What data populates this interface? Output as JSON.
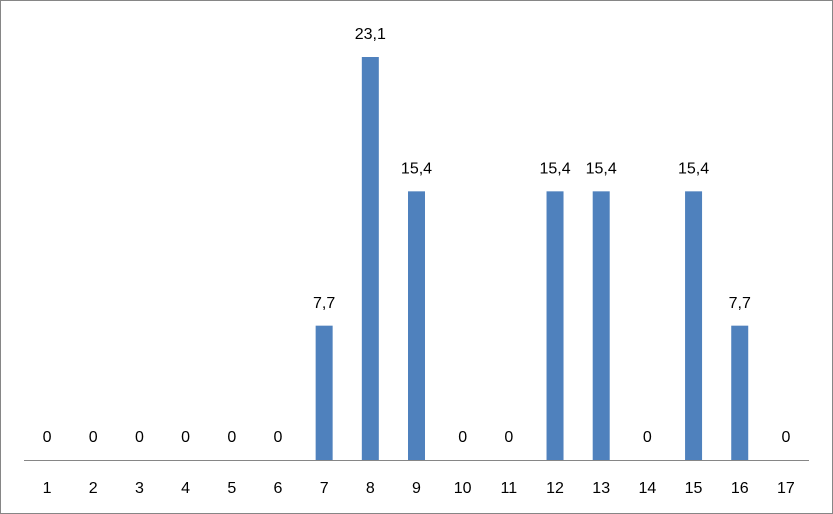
{
  "chart_data": {
    "type": "bar",
    "categories": [
      "1",
      "2",
      "3",
      "4",
      "5",
      "6",
      "7",
      "8",
      "9",
      "10",
      "11",
      "12",
      "13",
      "14",
      "15",
      "16",
      "17"
    ],
    "values": [
      0,
      0,
      0,
      0,
      0,
      0,
      7.7,
      23.1,
      15.4,
      0,
      0,
      15.4,
      15.4,
      0,
      15.4,
      7.7,
      0
    ],
    "value_labels": [
      "0",
      "0",
      "0",
      "0",
      "0",
      "0",
      "7,7",
      "23,1",
      "15,4",
      "0",
      "0",
      "15,4",
      "15,4",
      "0",
      "15,4",
      "7,7",
      "0"
    ],
    "color": "#4f81bd"
  }
}
